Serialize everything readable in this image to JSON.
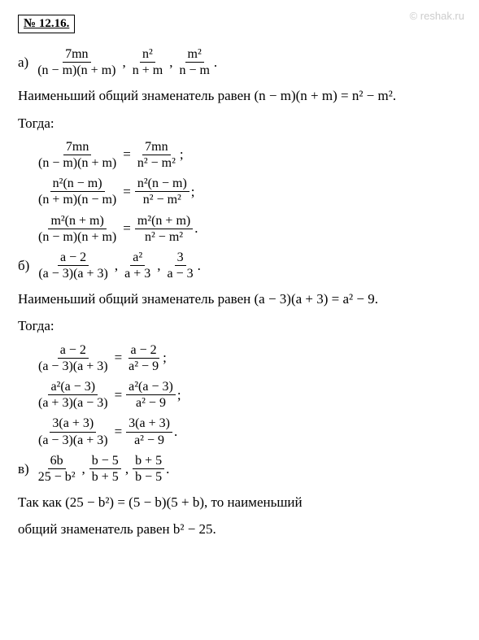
{
  "watermark": "© reshak.ru",
  "title": "№ 12.16.",
  "partA": {
    "label": "а)",
    "f1n": "7mn",
    "f1d": "(n − m)(n + m)",
    "f2n": "n²",
    "f2d": "n + m",
    "f3n": "m²",
    "f3d": "n − m",
    "end": "."
  },
  "lcdA": "Наименьший общий знаменатель равен (n − m)(n + m) = n² − m².",
  "then": "Тогда:",
  "eqA1": {
    "ln": "7mn",
    "ld": "(n − m)(n + m)",
    "rn": "7mn",
    "rd": "n² − m²",
    "end": ";"
  },
  "eqA2": {
    "ln": "n²(n − m)",
    "ld": "(n + m)(n − m)",
    "rn": "n²(n − m)",
    "rd": "n² − m²",
    "end": ";"
  },
  "eqA3": {
    "ln": "m²(n + m)",
    "ld": "(n − m)(n + m)",
    "rn": "m²(n + m)",
    "rd": "n² − m²",
    "end": "."
  },
  "partB": {
    "label": "б)",
    "f1n": "a − 2",
    "f1d": "(a − 3)(a + 3)",
    "f2n": "a²",
    "f2d": "a + 3",
    "f3n": "3",
    "f3d": "a − 3",
    "end": "."
  },
  "lcdB": "Наименьший общий знаменатель равен (a − 3)(a + 3) = a² − 9.",
  "eqB1": {
    "ln": "a − 2",
    "ld": "(a − 3)(a + 3)",
    "rn": "a − 2",
    "rd": "a² − 9",
    "end": ";"
  },
  "eqB2": {
    "ln": "a²(a − 3)",
    "ld": "(a + 3)(a − 3)",
    "rn": "a²(a − 3)",
    "rd": "a² − 9",
    "end": ";"
  },
  "eqB3": {
    "ln": "3(a + 3)",
    "ld": "(a − 3)(a + 3)",
    "rn": "3(a + 3)",
    "rd": "a² − 9",
    "end": "."
  },
  "partC": {
    "label": "в)",
    "f1n": "6b",
    "f1d": "25 − b²",
    "f2n": "b − 5",
    "f2d": "b + 5",
    "f3n": "b + 5",
    "f3d": "b − 5",
    "end": "."
  },
  "lcdC1": "Так как (25 − b²) = (5 − b)(5 + b), то наименьший",
  "lcdC2": "общий знаменатель равен b² − 25."
}
